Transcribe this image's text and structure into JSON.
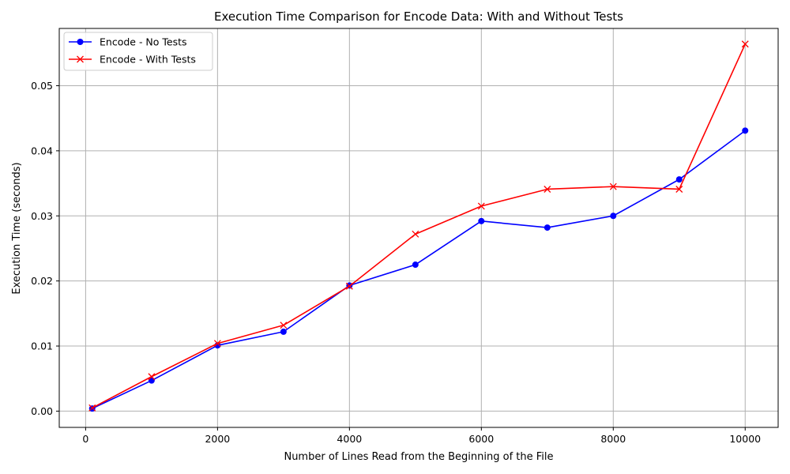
{
  "chart_data": {
    "type": "line",
    "title": "Execution Time Comparison for Encode Data: With and Without Tests",
    "xlabel": "Number of Lines Read from the Beginning of the File",
    "ylabel": "Execution Time (seconds)",
    "x": [
      100,
      1000,
      2000,
      3000,
      4000,
      5000,
      6000,
      7000,
      8000,
      9000,
      10000
    ],
    "xlim": [
      -400,
      10500
    ],
    "ylim": [
      -0.0025,
      0.0588
    ],
    "xticks": [
      0,
      2000,
      4000,
      6000,
      8000,
      10000
    ],
    "xtick_labels": [
      "0",
      "2000",
      "4000",
      "6000",
      "8000",
      "10000"
    ],
    "yticks": [
      0.0,
      0.01,
      0.02,
      0.03,
      0.04,
      0.05
    ],
    "ytick_labels": [
      "0.00",
      "0.01",
      "0.02",
      "0.03",
      "0.04",
      "0.05"
    ],
    "grid": true,
    "legend_position": "top-left",
    "series": [
      {
        "name": "Encode - No Tests",
        "color": "#0000ff",
        "marker": "circle",
        "values": [
          0.0004,
          0.0047,
          0.0101,
          0.0122,
          0.0193,
          0.0225,
          0.0292,
          0.0282,
          0.03,
          0.0356,
          0.0431
        ]
      },
      {
        "name": "Encode - With Tests",
        "color": "#ff0000",
        "marker": "x",
        "values": [
          0.0005,
          0.0053,
          0.0104,
          0.0132,
          0.0192,
          0.0272,
          0.0315,
          0.0341,
          0.0345,
          0.0341,
          0.0564
        ]
      }
    ]
  }
}
